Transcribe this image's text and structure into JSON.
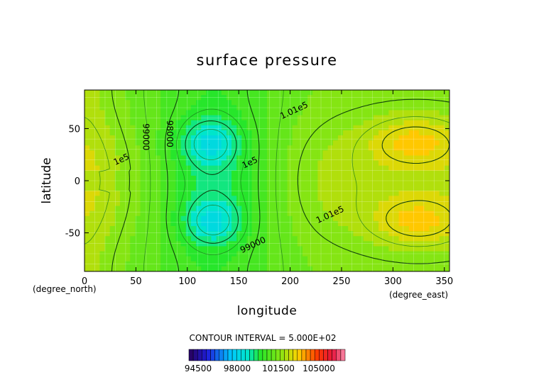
{
  "chart_data": {
    "type": "contour",
    "title": "surface pressure",
    "xlabel": "longitude",
    "ylabel": "latitude",
    "x_unit": "(degree_east)",
    "y_unit": "(degree_north)",
    "xlim": [
      0,
      355
    ],
    "ylim": [
      -87,
      87
    ],
    "x_ticks": [
      0,
      50,
      100,
      150,
      200,
      250,
      300,
      350
    ],
    "y_ticks": [
      -50,
      0,
      50
    ],
    "contour_interval_label": "CONTOUR INTERVAL = 5.000E+02",
    "contour_interval": 500,
    "contour_labels": [
      {
        "text": "1.01e5",
        "x": 205,
        "y": 65
      },
      {
        "text": "1e5",
        "x": 162,
        "y": 15
      },
      {
        "text": "99000",
        "x": 57,
        "y": 42
      },
      {
        "text": "98000",
        "x": 80,
        "y": 45
      },
      {
        "text": "1e5",
        "x": 37,
        "y": 18
      },
      {
        "text": "1.01e5",
        "x": 240,
        "y": -35
      },
      {
        "text": "99000",
        "x": 165,
        "y": -64
      }
    ],
    "fields": {
      "min_pressure": 97000,
      "min_centers": [
        {
          "lon": 122,
          "lat": 37
        },
        {
          "lon": 125,
          "lat": -40
        }
      ],
      "max_centers": [
        {
          "lon": 322,
          "lat": 38
        },
        {
          "lon": 325,
          "lat": -40
        }
      ],
      "max_pressure": 102200
    },
    "colorbar": {
      "range": [
        94000,
        106000
      ],
      "tick_labels": [
        "94500",
        "98000",
        "101500",
        "105000"
      ]
    }
  }
}
